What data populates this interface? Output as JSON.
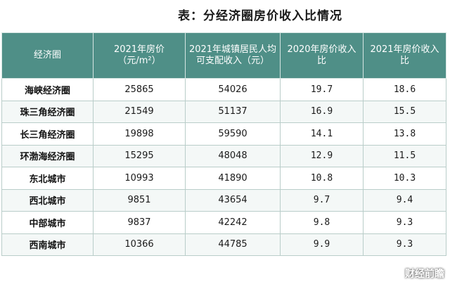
{
  "title": "表：分经济圈房价收入比情况",
  "table": {
    "headers": [
      "经济圈",
      "2021年房价（元/m²）",
      "2021年城镇居民人均可支配收入（元）",
      "2020年房价收入比",
      "2021年房价收入比"
    ],
    "rows": [
      {
        "region": "海峡经济圈",
        "price_2021": "25865",
        "income_2021": "54026",
        "ratio_2020": "19.7",
        "ratio_2021": "18.6"
      },
      {
        "region": "珠三角经济圈",
        "price_2021": "21549",
        "income_2021": "51137",
        "ratio_2020": "16.9",
        "ratio_2021": "15.5"
      },
      {
        "region": "长三角经济圈",
        "price_2021": "19898",
        "income_2021": "59590",
        "ratio_2020": "14.1",
        "ratio_2021": "13.8"
      },
      {
        "region": "环渤海经济圈",
        "price_2021": "15295",
        "income_2021": "48048",
        "ratio_2020": "12.9",
        "ratio_2021": "11.5"
      },
      {
        "region": "东北城市",
        "price_2021": "10993",
        "income_2021": "41890",
        "ratio_2020": "10.8",
        "ratio_2021": "10.3"
      },
      {
        "region": "西北城市",
        "price_2021": "9851",
        "income_2021": "43654",
        "ratio_2020": "9.7",
        "ratio_2021": "9.4"
      },
      {
        "region": "中部城市",
        "price_2021": "9837",
        "income_2021": "42242",
        "ratio_2020": "9.8",
        "ratio_2021": "9.3"
      },
      {
        "region": "西南城市",
        "price_2021": "10366",
        "income_2021": "44785",
        "ratio_2020": "9.9",
        "ratio_2021": "9.3"
      }
    ]
  },
  "watermark": {
    "text": "财经前瞻",
    "icon": "watermark-logo-icon"
  },
  "colors": {
    "header_bg": "#4f8f87",
    "header_text": "#ffffff",
    "border": "#b9cdc9"
  }
}
